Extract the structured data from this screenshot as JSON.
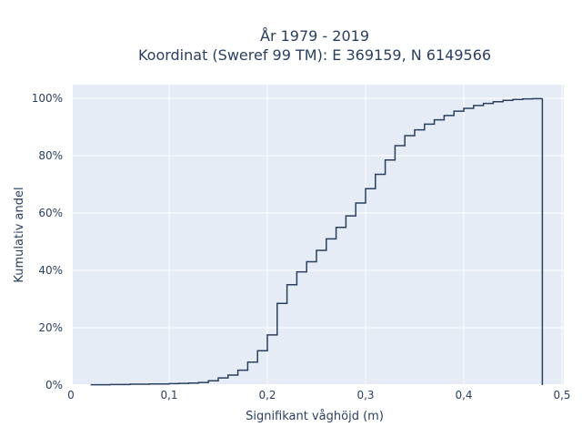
{
  "chart_data": {
    "type": "line",
    "subtype": "step-ecdf",
    "title_lines": [
      "År 1979 - 2019",
      "Koordinat (Sweref 99 TM): E 369159, N 6149566"
    ],
    "xlabel": "Signifikant våghöjd (m)",
    "ylabel": "Kumulativ andel",
    "xlim": [
      0.0,
      0.5
    ],
    "ylim": [
      0,
      100
    ],
    "x_ticks": [
      0,
      0.1,
      0.2,
      0.3,
      0.4,
      0.5
    ],
    "x_tick_labels": [
      "0",
      "0,1",
      "0,2",
      "0,3",
      "0,4",
      "0,5"
    ],
    "y_ticks": [
      0,
      20,
      40,
      60,
      80,
      100
    ],
    "y_tick_labels": [
      "0%",
      "20%",
      "40%",
      "60%",
      "80%",
      "100%"
    ],
    "grid": true,
    "series": [
      {
        "color": "#2a3f5f",
        "x": [
          0.02,
          0.03,
          0.04,
          0.05,
          0.06,
          0.07,
          0.08,
          0.09,
          0.1,
          0.11,
          0.12,
          0.13,
          0.14,
          0.15,
          0.16,
          0.17,
          0.18,
          0.19,
          0.2,
          0.21,
          0.22,
          0.23,
          0.24,
          0.25,
          0.26,
          0.27,
          0.28,
          0.29,
          0.3,
          0.31,
          0.32,
          0.33,
          0.34,
          0.35,
          0.36,
          0.37,
          0.38,
          0.39,
          0.4,
          0.41,
          0.42,
          0.43,
          0.44,
          0.45,
          0.46,
          0.47,
          0.48
        ],
        "y": [
          0.1,
          0.1,
          0.2,
          0.2,
          0.3,
          0.3,
          0.4,
          0.4,
          0.5,
          0.6,
          0.7,
          0.9,
          1.5,
          2.5,
          3.5,
          5.2,
          8.0,
          12.0,
          17.5,
          28.5,
          35.0,
          39.5,
          43.0,
          47.0,
          51.0,
          55.0,
          59.0,
          63.5,
          68.5,
          73.5,
          78.5,
          83.5,
          87.0,
          89.0,
          91.0,
          92.5,
          94.0,
          95.5,
          96.5,
          97.5,
          98.2,
          98.8,
          99.3,
          99.6,
          99.8,
          99.9,
          100.0
        ],
        "end_x": 0.48,
        "end_y": 0
      }
    ]
  }
}
